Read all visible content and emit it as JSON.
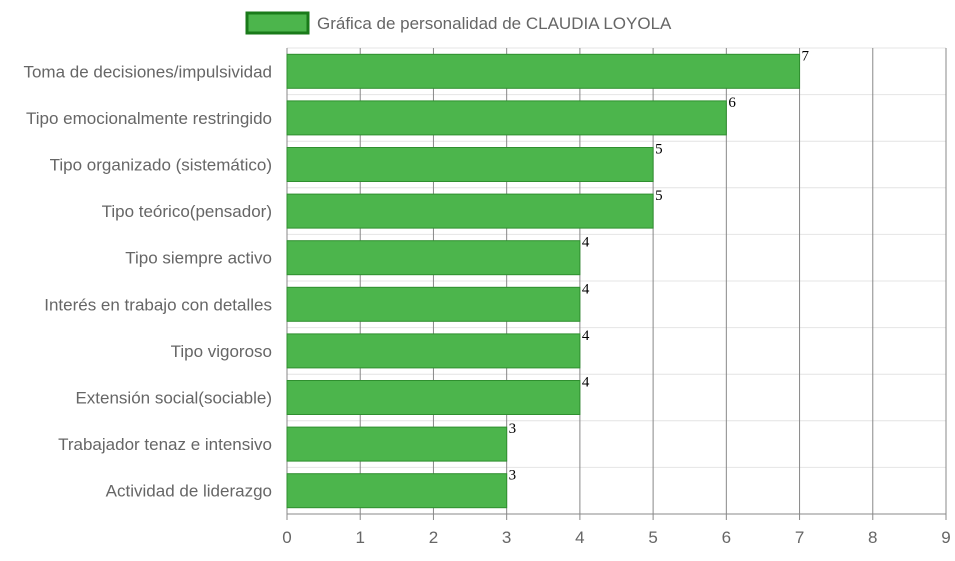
{
  "chart_data": {
    "type": "bar",
    "orientation": "horizontal",
    "categories": [
      "Toma de decisiones/impulsividad",
      "Tipo emocionalmente restringido",
      "Tipo organizado (sistemático)",
      "Tipo teórico(pensador)",
      "Tipo siempre activo",
      "Interés en trabajo con detalles",
      "Tipo vigoroso",
      "Extensión social(sociable)",
      "Trabajador tenaz e intensivo",
      "Actividad de liderazgo"
    ],
    "series": [
      {
        "name": "Gráfica de personalidad de CLAUDIA LOYOLA",
        "values": [
          7,
          6,
          5,
          5,
          4,
          4,
          4,
          4,
          3,
          3
        ]
      }
    ],
    "xlim": [
      0,
      9
    ],
    "xticks": [
      "0",
      "1",
      "2",
      "3",
      "4",
      "5",
      "6",
      "7",
      "8",
      "9"
    ],
    "grid": true,
    "legend_position": "top",
    "data_labels": true,
    "colors": {
      "bar_fill": "#4cb54c",
      "bar_stroke": "#2f8f2f",
      "legend_box_fill": "#4cb54c",
      "legend_box_stroke": "#1a7a1a",
      "grid_vertical": "#888888",
      "grid_horizontal": "#e4e4e4",
      "axis": "#888888"
    }
  }
}
